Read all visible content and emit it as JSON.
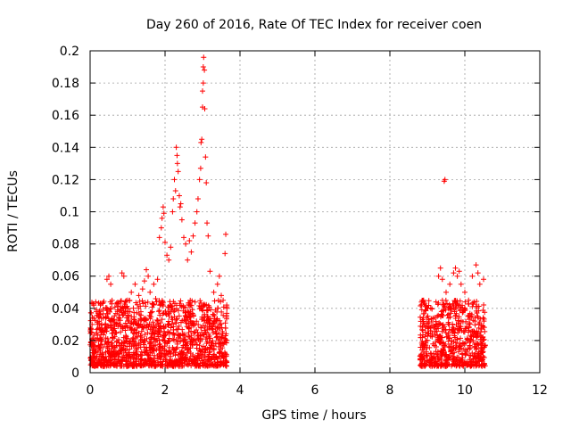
{
  "chart_data": {
    "type": "scatter",
    "title": "Day 260 of 2016, Rate Of TEC Index for receiver coen",
    "xlabel": "GPS time / hours",
    "ylabel": "ROTI / TECUs",
    "xlim": [
      0,
      12
    ],
    "ylim": [
      0,
      0.2
    ],
    "x_ticks": [
      0,
      2,
      4,
      6,
      8,
      10,
      12
    ],
    "y_ticks": [
      0,
      0.02,
      0.04,
      0.06,
      0.08,
      0.1,
      0.12,
      0.14,
      0.16,
      0.18,
      0.2
    ],
    "x_tick_labels": [
      "0",
      "2",
      "4",
      "6",
      "8",
      "10",
      "12"
    ],
    "y_tick_labels": [
      "0",
      "0.02",
      "0.04",
      "0.06",
      "0.08",
      "0.1",
      "0.12",
      "0.14",
      "0.16",
      "0.18",
      "0.2"
    ],
    "grid": true,
    "marker": "+",
    "color": "#ff0000",
    "series": [
      {
        "name": "ROTI",
        "points": [
          [
            0.05,
            0.043
          ],
          [
            0.1,
            0.042
          ],
          [
            0.15,
            0.044
          ],
          [
            0.2,
            0.03
          ],
          [
            0.3,
            0.025
          ],
          [
            0.45,
            0.058
          ],
          [
            0.5,
            0.06
          ],
          [
            0.55,
            0.055
          ],
          [
            0.7,
            0.03
          ],
          [
            0.85,
            0.062
          ],
          [
            0.9,
            0.06
          ],
          [
            1.0,
            0.045
          ],
          [
            1.1,
            0.05
          ],
          [
            1.2,
            0.055
          ],
          [
            1.3,
            0.048
          ],
          [
            1.4,
            0.052
          ],
          [
            1.45,
            0.057
          ],
          [
            1.5,
            0.064
          ],
          [
            1.55,
            0.06
          ],
          [
            1.6,
            0.05
          ],
          [
            1.7,
            0.055
          ],
          [
            1.75,
            0.046
          ],
          [
            1.8,
            0.058
          ],
          [
            1.85,
            0.084
          ],
          [
            1.9,
            0.09
          ],
          [
            1.92,
            0.096
          ],
          [
            1.95,
            0.103
          ],
          [
            1.97,
            0.099
          ],
          [
            2.0,
            0.081
          ],
          [
            2.05,
            0.073
          ],
          [
            2.1,
            0.07
          ],
          [
            2.15,
            0.078
          ],
          [
            2.2,
            0.1
          ],
          [
            2.22,
            0.108
          ],
          [
            2.25,
            0.12
          ],
          [
            2.28,
            0.113
          ],
          [
            2.3,
            0.14
          ],
          [
            2.32,
            0.135
          ],
          [
            2.33,
            0.13
          ],
          [
            2.35,
            0.125
          ],
          [
            2.38,
            0.11
          ],
          [
            2.4,
            0.103
          ],
          [
            2.42,
            0.105
          ],
          [
            2.45,
            0.095
          ],
          [
            2.5,
            0.084
          ],
          [
            2.55,
            0.08
          ],
          [
            2.6,
            0.07
          ],
          [
            2.65,
            0.082
          ],
          [
            2.7,
            0.075
          ],
          [
            2.75,
            0.085
          ],
          [
            2.8,
            0.093
          ],
          [
            2.85,
            0.1
          ],
          [
            2.88,
            0.108
          ],
          [
            2.92,
            0.12
          ],
          [
            2.95,
            0.127
          ],
          [
            2.96,
            0.143
          ],
          [
            2.98,
            0.145
          ],
          [
            3.0,
            0.165
          ],
          [
            3.0,
            0.175
          ],
          [
            3.02,
            0.18
          ],
          [
            3.02,
            0.19
          ],
          [
            3.03,
            0.196
          ],
          [
            3.05,
            0.188
          ],
          [
            3.06,
            0.164
          ],
          [
            3.08,
            0.134
          ],
          [
            3.1,
            0.118
          ],
          [
            3.12,
            0.093
          ],
          [
            3.15,
            0.085
          ],
          [
            3.2,
            0.063
          ],
          [
            3.3,
            0.05
          ],
          [
            3.4,
            0.055
          ],
          [
            3.45,
            0.06
          ],
          [
            3.5,
            0.048
          ],
          [
            3.55,
            0.045
          ],
          [
            3.6,
            0.074
          ],
          [
            3.62,
            0.086
          ],
          [
            3.65,
            0.04
          ],
          [
            9.45,
            0.119
          ],
          [
            9.47,
            0.12
          ],
          [
            9.3,
            0.06
          ],
          [
            9.35,
            0.065
          ],
          [
            9.4,
            0.058
          ],
          [
            9.5,
            0.05
          ],
          [
            9.6,
            0.055
          ],
          [
            9.7,
            0.062
          ],
          [
            9.75,
            0.065
          ],
          [
            9.8,
            0.06
          ],
          [
            9.85,
            0.063
          ],
          [
            9.9,
            0.055
          ],
          [
            10.0,
            0.05
          ],
          [
            10.1,
            0.045
          ],
          [
            10.2,
            0.06
          ],
          [
            10.3,
            0.067
          ],
          [
            10.35,
            0.062
          ],
          [
            10.4,
            0.055
          ],
          [
            10.5,
            0.058
          ],
          [
            8.9,
            0.045
          ],
          [
            9.0,
            0.04
          ]
        ],
        "dense_bands": [
          {
            "x_range": [
              0.0,
              3.65
            ],
            "y_range": [
              0.004,
              0.045
            ],
            "density": "very high"
          },
          {
            "x_range": [
              8.8,
              10.55
            ],
            "y_range": [
              0.004,
              0.045
            ],
            "density": "high"
          }
        ]
      }
    ]
  }
}
